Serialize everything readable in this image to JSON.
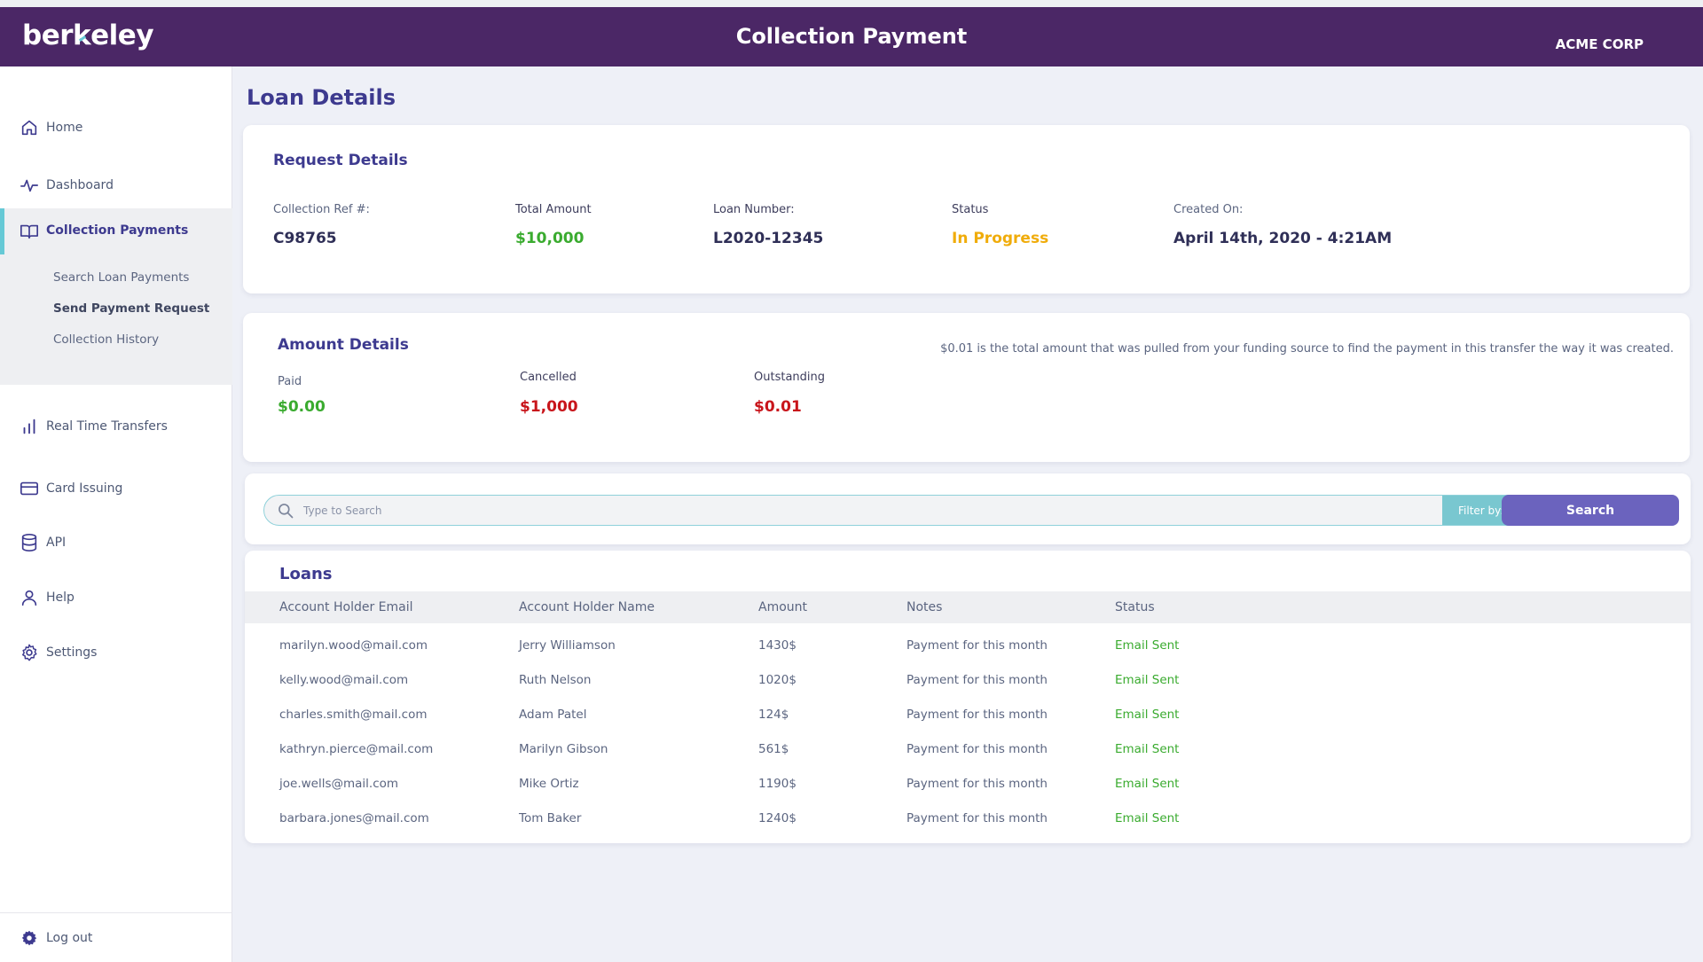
{
  "header": {
    "logo": "berkeley",
    "title": "Collection Payment",
    "company": "ACME CORP"
  },
  "sidebar": {
    "items": [
      {
        "label": "Home",
        "icon": "home-icon"
      },
      {
        "label": "Dashboard",
        "icon": "pulse-icon"
      },
      {
        "label": "Collection Payments",
        "icon": "book-icon"
      },
      {
        "label": "Real Time Transfers",
        "icon": "bar-chart-icon"
      },
      {
        "label": "Card Issuing",
        "icon": "credit-card-icon"
      },
      {
        "label": "API",
        "icon": "database-icon"
      },
      {
        "label": "Help",
        "icon": "user-icon"
      },
      {
        "label": "Settings",
        "icon": "gear-icon"
      }
    ],
    "subitems": [
      "Search Loan Payments",
      "Send Payment Request",
      "Collection History"
    ],
    "logout": "Log out"
  },
  "page_title": "Loan Details",
  "request": {
    "title": "Request Details",
    "ref_label": "Collection Ref #:",
    "ref_value": "C98765",
    "total_label": "Total Amount",
    "total_value": "$10,000",
    "loan_label": "Loan Number:",
    "loan_value": "L2020-12345",
    "status_label": "Status",
    "status_value": "In Progress",
    "created_label": "Created On:",
    "created_value": "April 14th, 2020 - 4:21AM"
  },
  "amount": {
    "title": "Amount Details",
    "paid_label": "Paid",
    "paid_value": "$0.00",
    "cancelled_label": "Cancelled",
    "cancelled_value": "$1,000",
    "outstanding_label": "Outstanding",
    "outstanding_value": "$0.01",
    "note": "$0.01 is the total amount that was pulled from your funding source to find the payment in this transfer the way it was created."
  },
  "search": {
    "placeholder": "Type to Search",
    "filter_label": "Filter by:",
    "button_label": "Search"
  },
  "loans": {
    "title": "Loans",
    "columns": [
      "Account Holder Email",
      "Account Holder Name",
      "Amount",
      "Notes",
      "Status"
    ],
    "rows": [
      {
        "email": "marilyn.wood@mail.com",
        "name": "Jerry Williamson",
        "amount": "1430$",
        "notes": "Payment for this month",
        "status": "Email Sent"
      },
      {
        "email": "kelly.wood@mail.com",
        "name": "Ruth Nelson",
        "amount": "1020$",
        "notes": "Payment for this month",
        "status": "Email Sent"
      },
      {
        "email": "charles.smith@mail.com",
        "name": "Adam Patel",
        "amount": "124$",
        "notes": "Payment for this month",
        "status": "Email Sent"
      },
      {
        "email": "kathryn.pierce@mail.com",
        "name": "Marilyn Gibson",
        "amount": "561$",
        "notes": "Payment for this month",
        "status": "Email Sent"
      },
      {
        "email": "joe.wells@mail.com",
        "name": "Mike Ortiz",
        "amount": "1190$",
        "notes": "Payment for this month",
        "status": "Email Sent"
      },
      {
        "email": "barbara.jones@mail.com",
        "name": "Tom Baker",
        "amount": "1240$",
        "notes": "Payment for this month",
        "status": "Email Sent"
      }
    ]
  },
  "colors": {
    "header": "#4b2766",
    "accent": "#3d3a8f",
    "teal": "#66c9d6",
    "button": "#6b63be",
    "positive": "#3aab2f",
    "negative": "#c8151b",
    "warning": "#f0ac0a"
  }
}
